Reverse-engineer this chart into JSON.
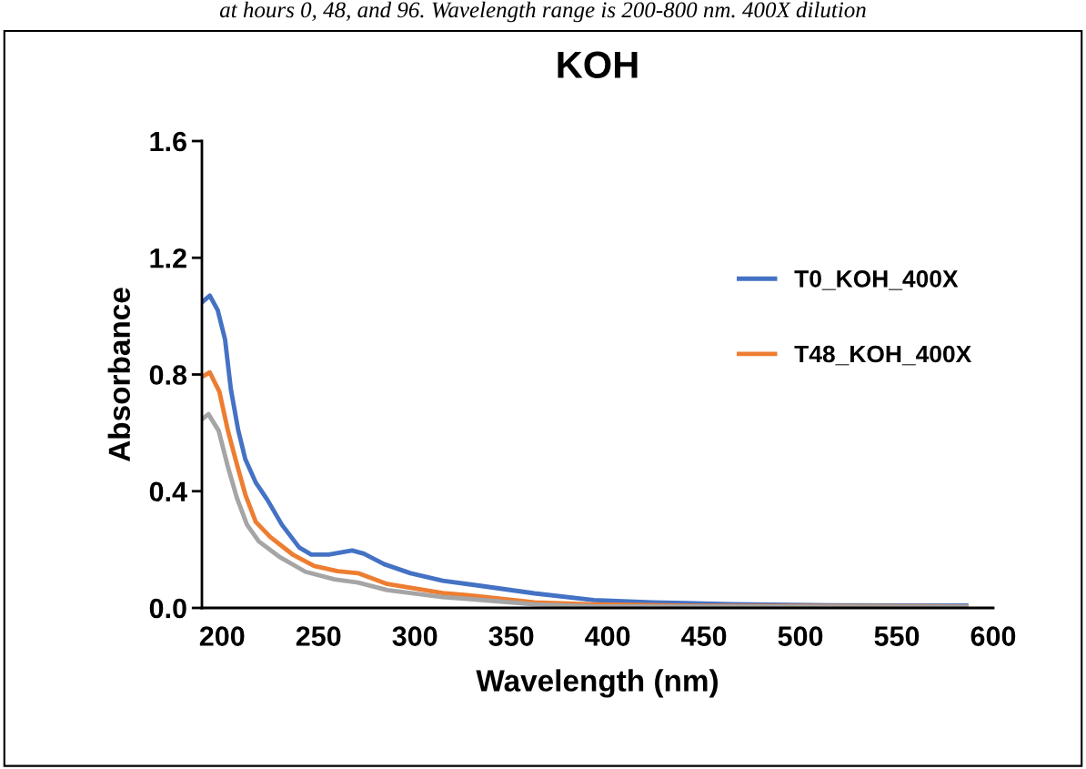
{
  "chart_data": {
    "type": "line",
    "title": "KOH",
    "xlabel": "Wavelength (nm)",
    "ylabel": "Absorbance",
    "annotations": [
      "at hours 0, 48, and 96. Wavelength range is 200-800 nm. 400X dilution"
    ],
    "xlim": [
      189.5,
      600
    ],
    "xticks": [
      200,
      250,
      300,
      350,
      400,
      450,
      500,
      550,
      600
    ],
    "ylim": [
      0,
      1.6
    ],
    "yticks": [
      {
        "value": 0,
        "label": "0.0"
      },
      {
        "value": 0.4,
        "label": "0.4"
      },
      {
        "value": 0.8,
        "label": "0.8"
      },
      {
        "value": 1.2,
        "label": "1.2"
      },
      {
        "value": 1.6,
        "label": "1.6"
      }
    ],
    "grid": false,
    "legend": "right",
    "marker": "none",
    "line_style": "solid",
    "series": [
      {
        "name": "T0_KOH_400X",
        "color": "#4472c4",
        "x": [
          190,
          193.6,
          197.7,
          201.5,
          204.5,
          208.3,
          212,
          217.4,
          223.5,
          231,
          240,
          246.2,
          255.3,
          267.4,
          273.5,
          284,
          297.7,
          314.4,
          331.6,
          362,
          392.7,
          423,
          464,
          515,
          586
        ],
        "values": [
          1.05,
          1.07,
          1.02,
          0.92,
          0.75,
          0.61,
          0.51,
          0.43,
          0.37,
          0.285,
          0.207,
          0.183,
          0.183,
          0.197,
          0.186,
          0.15,
          0.119,
          0.093,
          0.078,
          0.05,
          0.027,
          0.019,
          0.013,
          0.009,
          0.008
        ]
      },
      {
        "name": "T48_KOH_400X",
        "color": "#ed7d31",
        "x": [
          190,
          193.6,
          198.5,
          203,
          207.6,
          212,
          217.4,
          225,
          237,
          247.7,
          259.9,
          270.5,
          285.6,
          314.4,
          331.6,
          362,
          392.7,
          450,
          586
        ],
        "values": [
          0.794,
          0.807,
          0.742,
          0.607,
          0.493,
          0.389,
          0.295,
          0.243,
          0.181,
          0.144,
          0.126,
          0.119,
          0.082,
          0.051,
          0.041,
          0.019,
          0.012,
          0.007,
          0.005
        ]
      },
      {
        "color": "#a5a5a5",
        "x": [
          190,
          192.9,
          198.2,
          203,
          207.6,
          212.9,
          219,
          229.5,
          243.2,
          258.3,
          270.5,
          285.6,
          314.4,
          331.6,
          362,
          392.7,
          450,
          586
        ],
        "values": [
          0.649,
          0.664,
          0.607,
          0.483,
          0.378,
          0.285,
          0.228,
          0.176,
          0.124,
          0.098,
          0.087,
          0.061,
          0.037,
          0.029,
          0.012,
          0.006,
          0.005,
          0.004
        ]
      }
    ]
  }
}
